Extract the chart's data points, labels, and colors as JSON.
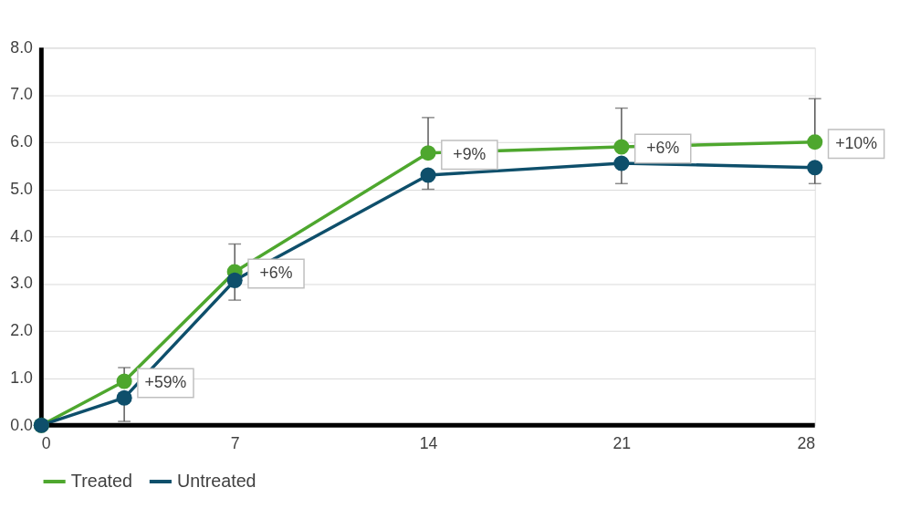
{
  "chart_data": {
    "type": "line",
    "x": [
      0,
      3,
      7,
      14,
      21,
      28
    ],
    "xlim": [
      0,
      28
    ],
    "xticks": [
      0,
      7,
      14,
      21,
      28
    ],
    "ylim": [
      0,
      8
    ],
    "yticks": [
      {
        "value": 0,
        "label": "0.0"
      },
      {
        "value": 1,
        "label": "1.0"
      },
      {
        "value": 2,
        "label": "2.0"
      },
      {
        "value": 3,
        "label": "3.0"
      },
      {
        "value": 4,
        "label": "4.0"
      },
      {
        "value": 5,
        "label": "5.0"
      },
      {
        "value": 6,
        "label": "6.0"
      },
      {
        "value": 7,
        "label": "7.0"
      },
      {
        "value": 8,
        "label": "8.0"
      }
    ],
    "grid": "y",
    "legend": "bottom",
    "marker": "circle",
    "line_style": "solid",
    "series": [
      {
        "name": "Treated",
        "color": "#4ea72e",
        "values": [
          0,
          0.93,
          3.25,
          5.77,
          5.9,
          6.0
        ],
        "errors": [
          null,
          [
            0.93,
            1.22
          ],
          [
            3.25,
            3.84
          ],
          [
            5.77,
            6.52
          ],
          [
            5.9,
            6.72
          ],
          [
            6.0,
            6.92
          ]
        ]
      },
      {
        "name": "Untreated",
        "color": "#0e4f6b",
        "values": [
          0,
          0.58,
          3.07,
          5.3,
          5.55,
          5.46
        ],
        "errors": [
          null,
          [
            0.08,
            0.58
          ],
          [
            2.65,
            3.07
          ],
          [
            5.0,
            5.3
          ],
          [
            5.12,
            5.55
          ],
          [
            5.12,
            5.46
          ]
        ]
      }
    ],
    "annotations": [
      {
        "text": "+59%",
        "x": 3,
        "y": 0.93
      },
      {
        "text": "+6%",
        "x": 7,
        "y": 3.25
      },
      {
        "text": "+9%",
        "x": 14,
        "y": 5.77
      },
      {
        "text": "+6%",
        "x": 21,
        "y": 5.9
      },
      {
        "text": "+10%",
        "x": 28,
        "y": 6.0
      }
    ]
  }
}
